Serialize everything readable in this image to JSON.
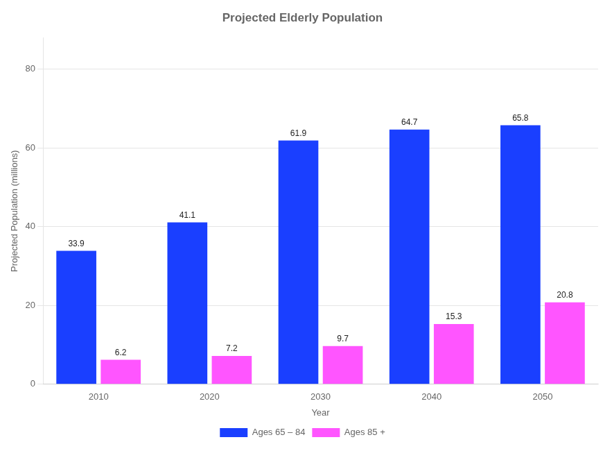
{
  "chart_data": {
    "type": "bar",
    "title": "Projected Elderly Population",
    "xlabel": "Year",
    "ylabel": "Projected Population (millions)",
    "categories": [
      "2010",
      "2020",
      "2030",
      "2040",
      "2050"
    ],
    "series": [
      {
        "name": "Ages 65 – 84",
        "color": "#1a3fff",
        "values": [
          33.9,
          41.1,
          61.9,
          64.7,
          65.8
        ]
      },
      {
        "name": "Ages 85 +",
        "color": "#ff55ff",
        "values": [
          6.2,
          7.2,
          9.7,
          15.3,
          20.8
        ]
      }
    ],
    "ylim": [
      0,
      88
    ],
    "yticks": [
      0,
      20,
      40,
      60,
      80
    ],
    "grid": true,
    "legend": "bottom",
    "data_labels": true
  }
}
